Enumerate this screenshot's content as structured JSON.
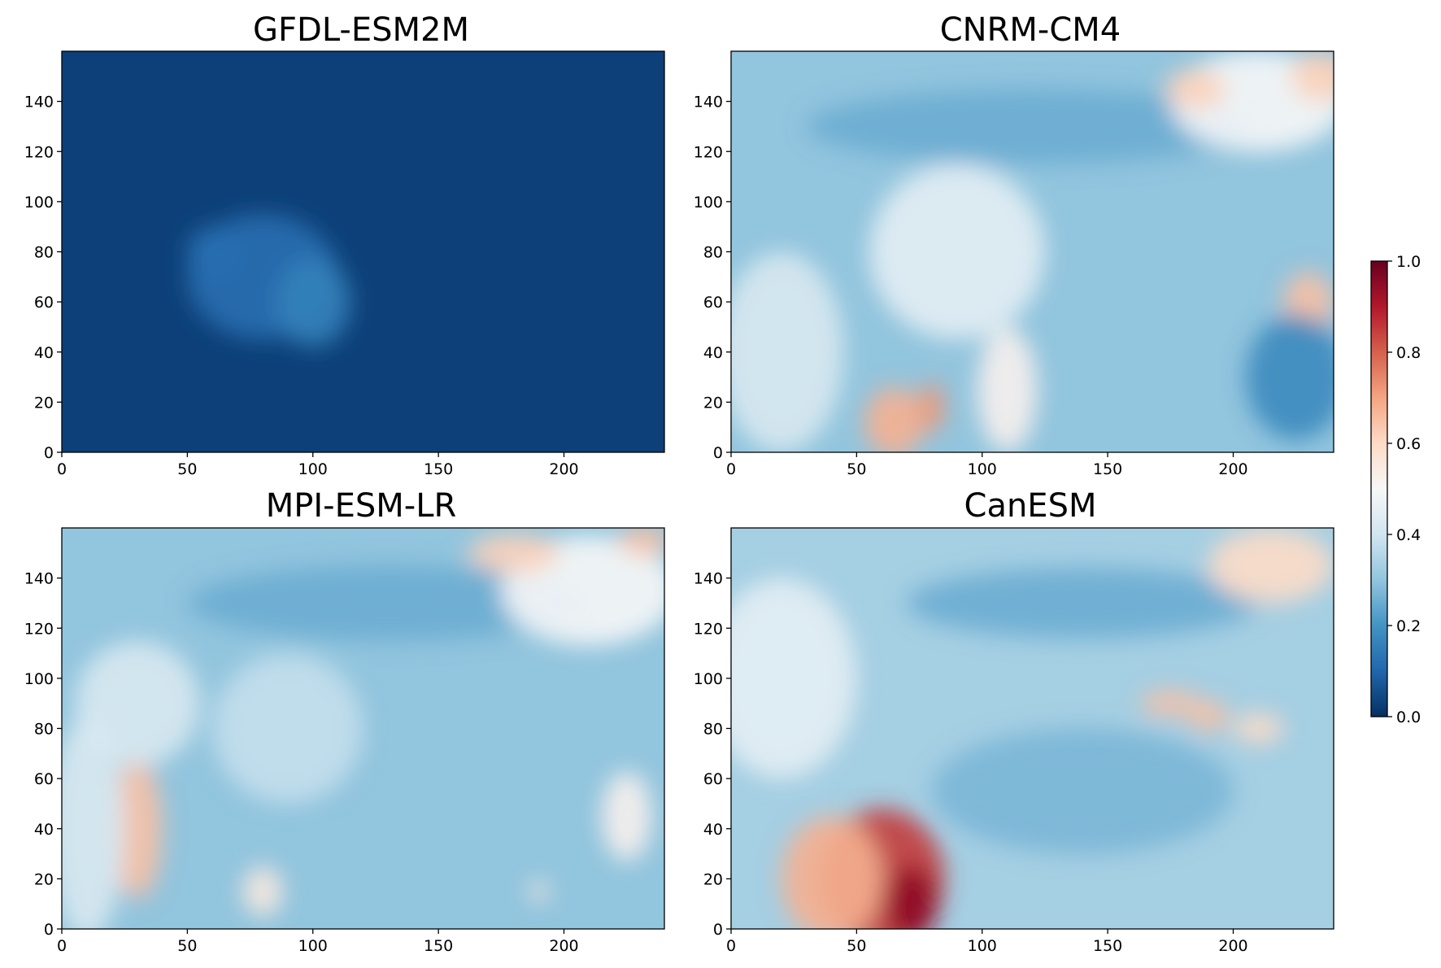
{
  "chart_data": [
    {
      "type": "heatmap",
      "title": "GFDL-ESM2M",
      "xlabel": "",
      "ylabel": "",
      "xlim": [
        0,
        240
      ],
      "ylim": [
        0,
        160
      ],
      "xticks": [
        "0",
        "50",
        "100",
        "150",
        "200"
      ],
      "yticks": [
        "0",
        "20",
        "40",
        "60",
        "80",
        "100",
        "120",
        "140"
      ],
      "base_value": 0.03,
      "features": [
        {
          "x": 80,
          "y": 70,
          "rx": 30,
          "ry": 25,
          "value": 0.12
        },
        {
          "x": 100,
          "y": 60,
          "rx": 15,
          "ry": 18,
          "value": 0.16
        },
        {
          "x": 60,
          "y": 80,
          "rx": 10,
          "ry": 10,
          "value": 0.12
        }
      ]
    },
    {
      "type": "heatmap",
      "title": "CNRM-CM4",
      "xlabel": "",
      "ylabel": "",
      "xlim": [
        0,
        240
      ],
      "ylim": [
        0,
        160
      ],
      "xticks": [
        "0",
        "50",
        "100",
        "150",
        "200"
      ],
      "yticks": [
        "0",
        "20",
        "40",
        "60",
        "80",
        "100",
        "120",
        "140"
      ],
      "base_value": 0.3,
      "features": [
        {
          "x": 120,
          "y": 130,
          "rx": 90,
          "ry": 15,
          "value": 0.25
        },
        {
          "x": 90,
          "y": 80,
          "rx": 35,
          "ry": 35,
          "value": 0.45
        },
        {
          "x": 110,
          "y": 25,
          "rx": 12,
          "ry": 25,
          "value": 0.52
        },
        {
          "x": 20,
          "y": 40,
          "rx": 25,
          "ry": 40,
          "value": 0.42
        },
        {
          "x": 65,
          "y": 12,
          "rx": 12,
          "ry": 14,
          "value": 0.68
        },
        {
          "x": 80,
          "y": 18,
          "rx": 5,
          "ry": 10,
          "value": 0.72
        },
        {
          "x": 210,
          "y": 140,
          "rx": 35,
          "ry": 20,
          "value": 0.5
        },
        {
          "x": 185,
          "y": 145,
          "rx": 12,
          "ry": 8,
          "value": 0.62
        },
        {
          "x": 235,
          "y": 150,
          "rx": 12,
          "ry": 10,
          "value": 0.62
        },
        {
          "x": 230,
          "y": 60,
          "rx": 10,
          "ry": 12,
          "value": 0.65
        },
        {
          "x": 225,
          "y": 30,
          "rx": 20,
          "ry": 25,
          "value": 0.18
        }
      ]
    },
    {
      "type": "heatmap",
      "title": "MPI-ESM-LR",
      "xlabel": "",
      "ylabel": "",
      "xlim": [
        0,
        240
      ],
      "ylim": [
        0,
        160
      ],
      "xticks": [
        "0",
        "50",
        "100",
        "150",
        "200"
      ],
      "yticks": [
        "0",
        "20",
        "40",
        "60",
        "80",
        "100",
        "120",
        "140"
      ],
      "base_value": 0.3,
      "features": [
        {
          "x": 130,
          "y": 130,
          "rx": 80,
          "ry": 15,
          "value": 0.25
        },
        {
          "x": 90,
          "y": 80,
          "rx": 30,
          "ry": 30,
          "value": 0.38
        },
        {
          "x": 30,
          "y": 40,
          "rx": 10,
          "ry": 28,
          "value": 0.65
        },
        {
          "x": 30,
          "y": 90,
          "rx": 25,
          "ry": 25,
          "value": 0.42
        },
        {
          "x": 10,
          "y": 40,
          "rx": 15,
          "ry": 45,
          "value": 0.42
        },
        {
          "x": 210,
          "y": 135,
          "rx": 35,
          "ry": 22,
          "value": 0.5
        },
        {
          "x": 180,
          "y": 150,
          "rx": 18,
          "ry": 8,
          "value": 0.62
        },
        {
          "x": 232,
          "y": 155,
          "rx": 10,
          "ry": 6,
          "value": 0.65
        },
        {
          "x": 225,
          "y": 45,
          "rx": 10,
          "ry": 18,
          "value": 0.52
        },
        {
          "x": 80,
          "y": 15,
          "rx": 8,
          "ry": 10,
          "value": 0.55
        },
        {
          "x": 190,
          "y": 15,
          "rx": 4,
          "ry": 4,
          "value": 0.55
        }
      ]
    },
    {
      "type": "heatmap",
      "title": "CanESM",
      "xlabel": "",
      "ylabel": "",
      "xlim": [
        0,
        240
      ],
      "ylim": [
        0,
        160
      ],
      "xticks": [
        "0",
        "50",
        "100",
        "150",
        "200"
      ],
      "yticks": [
        "0",
        "20",
        "40",
        "60",
        "80",
        "100",
        "120",
        "140"
      ],
      "base_value": 0.33,
      "features": [
        {
          "x": 140,
          "y": 130,
          "rx": 70,
          "ry": 14,
          "value": 0.25
        },
        {
          "x": 140,
          "y": 55,
          "rx": 60,
          "ry": 25,
          "value": 0.27
        },
        {
          "x": 60,
          "y": 20,
          "rx": 25,
          "ry": 28,
          "value": 0.85
        },
        {
          "x": 72,
          "y": 10,
          "rx": 10,
          "ry": 15,
          "value": 0.95
        },
        {
          "x": 40,
          "y": 20,
          "rx": 20,
          "ry": 25,
          "value": 0.68
        },
        {
          "x": 20,
          "y": 100,
          "rx": 30,
          "ry": 40,
          "value": 0.45
        },
        {
          "x": 215,
          "y": 145,
          "rx": 25,
          "ry": 15,
          "value": 0.6
        },
        {
          "x": 175,
          "y": 90,
          "rx": 12,
          "ry": 5,
          "value": 0.65
        },
        {
          "x": 190,
          "y": 85,
          "rx": 8,
          "ry": 6,
          "value": 0.65
        },
        {
          "x": 210,
          "y": 80,
          "rx": 10,
          "ry": 6,
          "value": 0.6
        }
      ]
    }
  ],
  "colorbar": {
    "colormap": "RdBu_r",
    "range": [
      0.0,
      1.0
    ],
    "ticks": [
      "0.0",
      "0.2",
      "0.4",
      "0.6",
      "0.8",
      "1.0"
    ]
  }
}
